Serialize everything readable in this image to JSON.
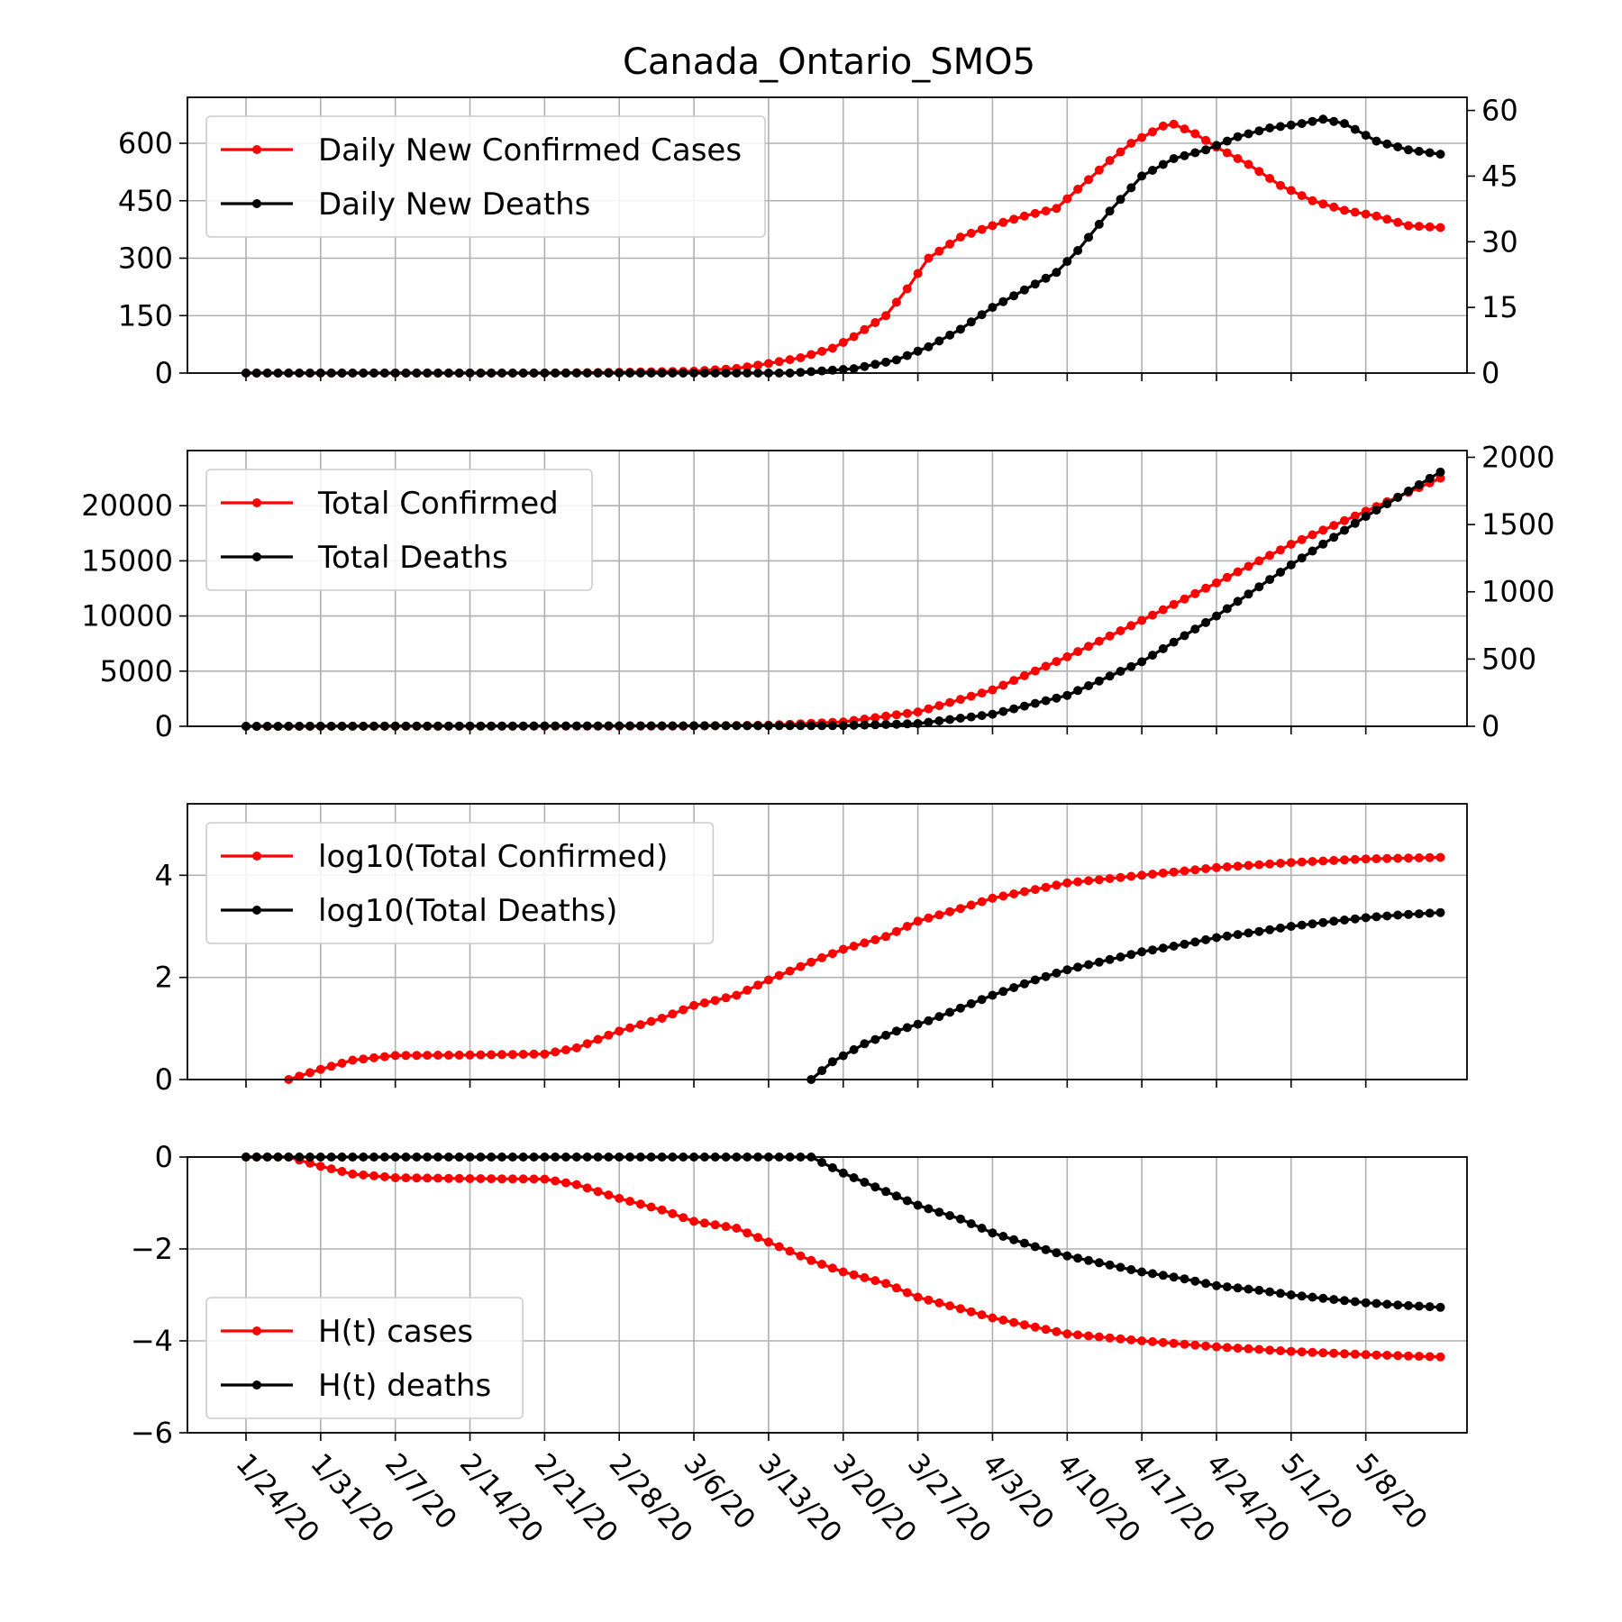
{
  "colors": {
    "cases": "#ff0000",
    "deaths": "#000000",
    "grid": "#b0b0b0"
  },
  "chart_data": {
    "title": "Canada_Ontario_SMO5",
    "type": "line",
    "x_dates": [
      "1/24/20",
      "1/31/20",
      "2/7/20",
      "2/14/20",
      "2/21/20",
      "2/28/20",
      "3/6/20",
      "3/13/20",
      "3/20/20",
      "3/27/20",
      "4/3/20",
      "4/10/20",
      "4/17/20",
      "4/24/20",
      "5/1/20",
      "5/8/20"
    ],
    "date_range": [
      "1/24/20",
      "5/12/20"
    ],
    "grid": true,
    "panels": [
      {
        "name": "daily",
        "legend_location": "upper-left",
        "series": [
          {
            "name": "Daily New Confirmed Cases",
            "axis": "left",
            "color": "#ff0000",
            "points": [
              [
                "1/24/20",
                0
              ],
              [
                "2/21/20",
                0
              ],
              [
                "2/28/20",
                2
              ],
              [
                "3/6/20",
                5
              ],
              [
                "3/10/20",
                12
              ],
              [
                "3/13/20",
                25
              ],
              [
                "3/16/20",
                40
              ],
              [
                "3/19/20",
                65
              ],
              [
                "3/21/20",
                95
              ],
              [
                "3/24/20",
                150
              ],
              [
                "3/26/20",
                220
              ],
              [
                "3/28/20",
                300
              ],
              [
                "3/31/20",
                355
              ],
              [
                "4/3/20",
                385
              ],
              [
                "4/6/20",
                410
              ],
              [
                "4/9/20",
                430
              ],
              [
                "4/11/20",
                480
              ],
              [
                "4/14/20",
                555
              ],
              [
                "4/16/20",
                600
              ],
              [
                "4/19/20",
                645
              ],
              [
                "4/20/20",
                650
              ],
              [
                "4/22/20",
                625
              ],
              [
                "4/24/20",
                590
              ],
              [
                "4/27/20",
                545
              ],
              [
                "4/30/20",
                490
              ],
              [
                "5/3/20",
                450
              ],
              [
                "5/6/20",
                425
              ],
              [
                "5/9/20",
                410
              ],
              [
                "5/12/20",
                385
              ],
              [
                "5/15/20",
                380
              ]
            ]
          },
          {
            "name": "Daily New Deaths",
            "axis": "right",
            "color": "#000000",
            "points": [
              [
                "1/24/20",
                0
              ],
              [
                "3/15/20",
                0
              ],
              [
                "3/21/20",
                1
              ],
              [
                "3/25/20",
                3
              ],
              [
                "3/28/20",
                6
              ],
              [
                "3/31/20",
                10
              ],
              [
                "4/3/20",
                15
              ],
              [
                "4/6/20",
                19
              ],
              [
                "4/9/20",
                23
              ],
              [
                "4/11/20",
                28
              ],
              [
                "4/14/20",
                37
              ],
              [
                "4/17/20",
                45
              ],
              [
                "4/20/20",
                49
              ],
              [
                "4/23/20",
                51
              ],
              [
                "4/26/20",
                54
              ],
              [
                "4/29/20",
                56
              ],
              [
                "5/2/20",
                57
              ],
              [
                "5/4/20",
                58
              ],
              [
                "5/6/20",
                57
              ],
              [
                "5/9/20",
                53
              ],
              [
                "5/12/20",
                51
              ],
              [
                "5/15/20",
                50
              ]
            ]
          }
        ],
        "left_axis": {
          "ylim": [
            0,
            720
          ],
          "ticks": [
            "0",
            "150",
            "300",
            "450",
            "600"
          ]
        },
        "right_axis": {
          "ylim": [
            0,
            63
          ],
          "ticks": [
            "0",
            "15",
            "30",
            "45",
            "60"
          ]
        }
      },
      {
        "name": "total",
        "legend_location": "upper-left",
        "series": [
          {
            "name": "Total Confirmed",
            "axis": "left",
            "color": "#ff0000",
            "points": [
              [
                "1/24/20",
                0
              ],
              [
                "2/28/20",
                20
              ],
              [
                "3/6/20",
                30
              ],
              [
                "3/13/20",
                100
              ],
              [
                "3/20/20",
                400
              ],
              [
                "3/27/20",
                1300
              ],
              [
                "4/3/20",
                3300
              ],
              [
                "4/10/20",
                6300
              ],
              [
                "4/17/20",
                9600
              ],
              [
                "4/24/20",
                13000
              ],
              [
                "5/1/20",
                16500
              ],
              [
                "5/8/20",
                19500
              ],
              [
                "5/15/20",
                22500
              ]
            ]
          },
          {
            "name": "Total Deaths",
            "axis": "right",
            "color": "#000000",
            "points": [
              [
                "1/24/20",
                0
              ],
              [
                "3/20/20",
                5
              ],
              [
                "3/27/20",
                20
              ],
              [
                "4/3/20",
                90
              ],
              [
                "4/10/20",
                230
              ],
              [
                "4/17/20",
                480
              ],
              [
                "4/24/20",
                820
              ],
              [
                "5/1/20",
                1200
              ],
              [
                "5/8/20",
                1560
              ],
              [
                "5/15/20",
                1890
              ]
            ]
          }
        ],
        "left_axis": {
          "ylim": [
            0,
            25000
          ],
          "ticks": [
            "0",
            "5000",
            "10000",
            "15000",
            "20000"
          ]
        },
        "right_axis": {
          "ylim": [
            0,
            2050
          ],
          "ticks": [
            "0",
            "500",
            "1000",
            "1500",
            "2000"
          ]
        }
      },
      {
        "name": "log",
        "legend_location": "upper-left",
        "series": [
          {
            "name": "log10(Total Confirmed)",
            "axis": "left",
            "color": "#ff0000",
            "points": [
              [
                "1/28/20",
                0
              ],
              [
                "1/31/20",
                0.2
              ],
              [
                "2/3/20",
                0.38
              ],
              [
                "2/7/20",
                0.47
              ],
              [
                "2/14/20",
                0.48
              ],
              [
                "2/21/20",
                0.5
              ],
              [
                "2/24/20",
                0.62
              ],
              [
                "2/28/20",
                0.95
              ],
              [
                "3/3/20",
                1.2
              ],
              [
                "3/6/20",
                1.45
              ],
              [
                "3/10/20",
                1.65
              ],
              [
                "3/13/20",
                1.95
              ],
              [
                "3/17/20",
                2.3
              ],
              [
                "3/20/20",
                2.55
              ],
              [
                "3/24/20",
                2.8
              ],
              [
                "3/27/20",
                3.1
              ],
              [
                "3/31/20",
                3.35
              ],
              [
                "4/3/20",
                3.55
              ],
              [
                "4/10/20",
                3.85
              ],
              [
                "4/17/20",
                4.0
              ],
              [
                "4/24/20",
                4.15
              ],
              [
                "5/1/20",
                4.25
              ],
              [
                "5/8/20",
                4.32
              ],
              [
                "5/15/20",
                4.35
              ]
            ]
          },
          {
            "name": "log10(Total Deaths)",
            "axis": "left",
            "color": "#000000",
            "points": [
              [
                "3/17/20",
                0
              ],
              [
                "3/19/20",
                0.35
              ],
              [
                "3/22/20",
                0.7
              ],
              [
                "3/25/20",
                0.95
              ],
              [
                "3/28/20",
                1.15
              ],
              [
                "3/31/20",
                1.4
              ],
              [
                "4/3/20",
                1.65
              ],
              [
                "4/7/20",
                1.95
              ],
              [
                "4/10/20",
                2.15
              ],
              [
                "4/14/20",
                2.35
              ],
              [
                "4/17/20",
                2.5
              ],
              [
                "4/21/20",
                2.65
              ],
              [
                "4/24/20",
                2.78
              ],
              [
                "4/28/20",
                2.9
              ],
              [
                "5/1/20",
                3.0
              ],
              [
                "5/5/20",
                3.1
              ],
              [
                "5/8/20",
                3.17
              ],
              [
                "5/11/20",
                3.22
              ],
              [
                "5/15/20",
                3.27
              ]
            ]
          }
        ],
        "left_axis": {
          "ylim": [
            0,
            5.4
          ],
          "ticks": [
            "0",
            "2",
            "4"
          ]
        }
      },
      {
        "name": "entropy",
        "legend_location": "lower-left",
        "series": [
          {
            "name": "H(t) cases",
            "axis": "left",
            "color": "#ff0000",
            "points": [
              [
                "1/24/20",
                0
              ],
              [
                "1/28/20",
                0
              ],
              [
                "1/31/20",
                -0.2
              ],
              [
                "2/3/20",
                -0.37
              ],
              [
                "2/7/20",
                -0.45
              ],
              [
                "2/14/20",
                -0.47
              ],
              [
                "2/21/20",
                -0.48
              ],
              [
                "2/24/20",
                -0.6
              ],
              [
                "2/28/20",
                -0.9
              ],
              [
                "3/3/20",
                -1.15
              ],
              [
                "3/6/20",
                -1.4
              ],
              [
                "3/10/20",
                -1.55
              ],
              [
                "3/13/20",
                -1.85
              ],
              [
                "3/17/20",
                -2.25
              ],
              [
                "3/20/20",
                -2.5
              ],
              [
                "3/24/20",
                -2.75
              ],
              [
                "3/27/20",
                -3.05
              ],
              [
                "3/31/20",
                -3.3
              ],
              [
                "4/3/20",
                -3.5
              ],
              [
                "4/10/20",
                -3.85
              ],
              [
                "4/17/20",
                -4.0
              ],
              [
                "4/24/20",
                -4.13
              ],
              [
                "5/1/20",
                -4.23
              ],
              [
                "5/8/20",
                -4.3
              ],
              [
                "5/15/20",
                -4.35
              ]
            ]
          },
          {
            "name": "H(t) deaths",
            "axis": "left",
            "color": "#000000",
            "points": [
              [
                "1/24/20",
                0
              ],
              [
                "3/10/20",
                0
              ],
              [
                "3/17/20",
                0
              ],
              [
                "3/20/20",
                -0.35
              ],
              [
                "3/24/20",
                -0.75
              ],
              [
                "3/27/20",
                -1.05
              ],
              [
                "3/31/20",
                -1.35
              ],
              [
                "4/3/20",
                -1.65
              ],
              [
                "4/7/20",
                -1.95
              ],
              [
                "4/10/20",
                -2.15
              ],
              [
                "4/14/20",
                -2.35
              ],
              [
                "4/17/20",
                -2.5
              ],
              [
                "4/21/20",
                -2.65
              ],
              [
                "4/24/20",
                -2.8
              ],
              [
                "4/28/20",
                -2.9
              ],
              [
                "5/1/20",
                -3.0
              ],
              [
                "5/5/20",
                -3.1
              ],
              [
                "5/8/20",
                -3.17
              ],
              [
                "5/11/20",
                -3.22
              ],
              [
                "5/15/20",
                -3.27
              ]
            ]
          }
        ],
        "left_axis": {
          "ylim": [
            -6,
            0
          ],
          "ticks": [
            "0",
            "−2",
            "−4",
            "−6"
          ]
        }
      }
    ]
  }
}
